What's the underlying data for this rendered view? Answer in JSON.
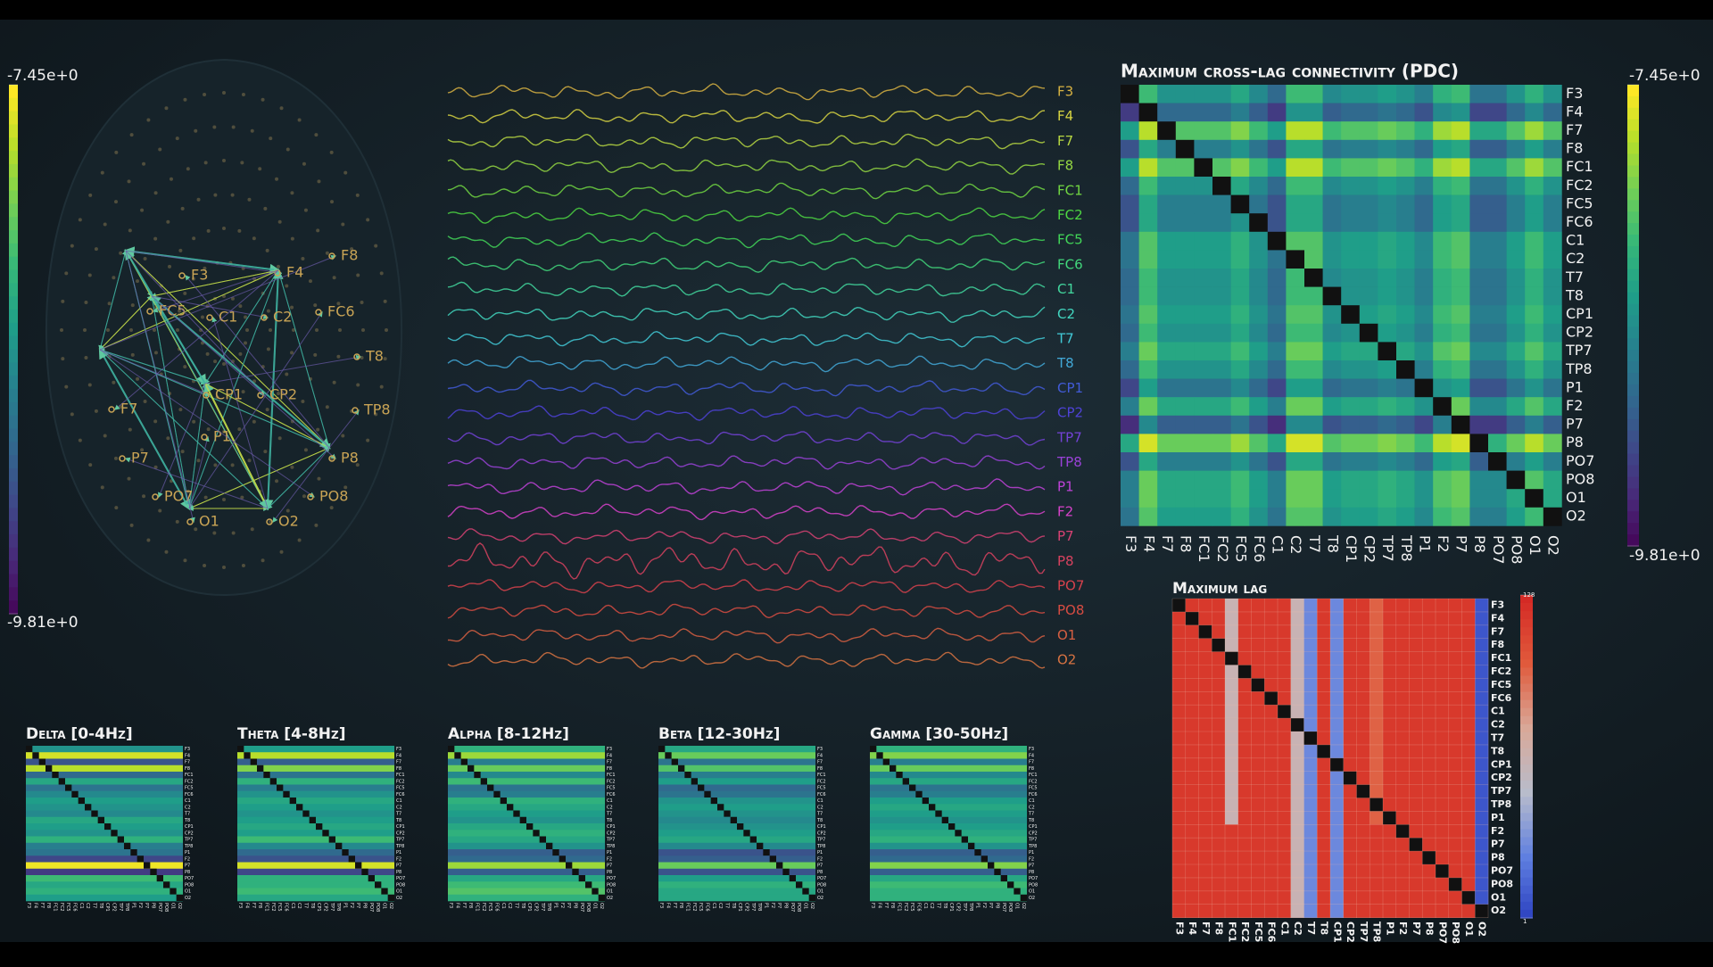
{
  "channels": [
    "F3",
    "F4",
    "F7",
    "F8",
    "FC1",
    "FC2",
    "FC5",
    "FC6",
    "C1",
    "C2",
    "T7",
    "T8",
    "CP1",
    "CP2",
    "TP7",
    "TP8",
    "P1",
    "F2",
    "P7",
    "P8",
    "PO7",
    "PO8",
    "O1",
    "O2"
  ],
  "left_colorbar": {
    "lim": [
      -9.81,
      -7.45
    ],
    "ticks": [
      {
        "value": -7.45,
        "label": "-7.45e+0"
      },
      {
        "value": -9.81,
        "label": "-9.81e+0"
      }
    ]
  },
  "topomap": {
    "labels": [
      "F8",
      "F4",
      "F3",
      "FC5",
      "FC6",
      "C1",
      "C2",
      "T8",
      "CP1",
      "CP2",
      "TP8",
      "F7",
      "P1",
      "P7",
      "P8",
      "PO7",
      "PO8",
      "O1",
      "O2"
    ]
  },
  "pdc": {
    "title": "Maximum cross-lag connectivity (PDC)",
    "lim": [
      -9.81,
      -7.45
    ],
    "colorbar_ticks": [
      {
        "value": -7.45,
        "label": "-7.45e+0"
      },
      {
        "value": -9.81,
        "label": "-9.81e+0"
      }
    ],
    "matrix": [
      [
        null,
        -8.2,
        -8.6,
        -8.6,
        -8.6,
        -8.6,
        -8.4,
        -8.7,
        -9.0,
        -8.2,
        -8.2,
        -8.7,
        -8.6,
        -8.6,
        -8.5,
        -8.6,
        -8.8,
        -8.3,
        -8.2,
        -8.9,
        -8.9,
        -8.6,
        -8.3,
        -8.6
      ],
      [
        -9.4,
        null,
        -9.0,
        -9.0,
        -9.0,
        -9.0,
        -8.8,
        -9.1,
        -9.4,
        -8.6,
        -8.6,
        -9.1,
        -9.0,
        -9.0,
        -8.9,
        -9.0,
        -9.2,
        -8.7,
        -8.6,
        -9.3,
        -9.3,
        -9.0,
        -8.7,
        -9.0
      ],
      [
        -8.5,
        -7.7,
        null,
        -8.1,
        -8.1,
        -8.1,
        -7.9,
        -8.2,
        -8.5,
        -7.7,
        -7.7,
        -8.2,
        -8.1,
        -8.1,
        -8.0,
        -8.1,
        -8.3,
        -7.8,
        -7.7,
        -8.4,
        -8.4,
        -8.1,
        -7.8,
        -8.1
      ],
      [
        -9.2,
        -8.4,
        -8.8,
        null,
        -8.8,
        -8.8,
        -8.6,
        -8.9,
        -9.2,
        -8.4,
        -8.4,
        -8.9,
        -8.8,
        -8.8,
        -8.7,
        -8.8,
        -9.0,
        -8.5,
        -8.4,
        -9.1,
        -9.1,
        -8.8,
        -8.5,
        -8.8
      ],
      [
        -8.5,
        -7.7,
        -8.1,
        -8.1,
        null,
        -8.1,
        -7.9,
        -8.2,
        -8.5,
        -7.7,
        -7.7,
        -8.2,
        -8.1,
        -8.1,
        -8.0,
        -8.1,
        -8.3,
        -7.8,
        -7.7,
        -8.4,
        -8.4,
        -8.1,
        -7.8,
        -8.1
      ],
      [
        -9.0,
        -8.2,
        -8.6,
        -8.6,
        -8.6,
        null,
        -8.4,
        -8.7,
        -9.0,
        -8.2,
        -8.2,
        -8.7,
        -8.6,
        -8.6,
        -8.5,
        -8.6,
        -8.8,
        -8.3,
        -8.2,
        -8.9,
        -8.9,
        -8.6,
        -8.3,
        -8.6
      ],
      [
        -9.2,
        -8.4,
        -8.8,
        -8.8,
        -8.8,
        -8.8,
        null,
        -8.9,
        -9.2,
        -8.4,
        -8.4,
        -8.9,
        -8.8,
        -8.8,
        -8.7,
        -8.8,
        -9.0,
        -8.5,
        -8.4,
        -9.1,
        -9.1,
        -8.8,
        -8.5,
        -8.8
      ],
      [
        -9.2,
        -8.4,
        -8.8,
        -8.8,
        -8.8,
        -8.8,
        -8.6,
        null,
        -9.2,
        -8.4,
        -8.4,
        -8.9,
        -8.8,
        -8.8,
        -8.7,
        -8.8,
        -9.0,
        -8.5,
        -8.4,
        -9.1,
        -9.1,
        -8.8,
        -8.5,
        -8.8
      ],
      [
        -8.9,
        -8.1,
        -8.5,
        -8.5,
        -8.5,
        -8.5,
        -8.3,
        -8.6,
        null,
        -8.1,
        -8.1,
        -8.6,
        -8.5,
        -8.5,
        -8.4,
        -8.5,
        -8.7,
        -8.2,
        -8.1,
        -8.8,
        -8.8,
        -8.5,
        -8.2,
        -8.5
      ],
      [
        -8.9,
        -8.1,
        -8.5,
        -8.5,
        -8.5,
        -8.5,
        -8.3,
        -8.6,
        -8.9,
        null,
        -8.1,
        -8.6,
        -8.5,
        -8.5,
        -8.4,
        -8.5,
        -8.7,
        -8.2,
        -8.1,
        -8.8,
        -8.8,
        -8.5,
        -8.2,
        -8.5
      ],
      [
        -9.0,
        -8.2,
        -8.6,
        -8.6,
        -8.6,
        -8.6,
        -8.4,
        -8.7,
        -9.0,
        -8.2,
        null,
        -8.7,
        -8.6,
        -8.6,
        -8.5,
        -8.6,
        -8.8,
        -8.3,
        -8.2,
        -8.9,
        -8.9,
        -8.6,
        -8.3,
        -8.6
      ],
      [
        -9.0,
        -8.2,
        -8.6,
        -8.6,
        -8.6,
        -8.6,
        -8.4,
        -8.7,
        -9.0,
        -8.2,
        -8.2,
        null,
        -8.6,
        -8.6,
        -8.5,
        -8.6,
        -8.8,
        -8.3,
        -8.2,
        -8.9,
        -8.9,
        -8.6,
        -8.3,
        -8.6
      ],
      [
        -8.9,
        -8.1,
        -8.5,
        -8.5,
        -8.5,
        -8.5,
        -8.3,
        -8.6,
        -8.9,
        -8.1,
        -8.1,
        -8.6,
        null,
        -8.5,
        -8.4,
        -8.5,
        -8.7,
        -8.2,
        -8.1,
        -8.8,
        -8.8,
        -8.5,
        -8.2,
        -8.5
      ],
      [
        -9.0,
        -8.2,
        -8.6,
        -8.6,
        -8.6,
        -8.6,
        -8.4,
        -8.7,
        -9.0,
        -8.2,
        -8.2,
        -8.7,
        -8.6,
        null,
        -8.5,
        -8.6,
        -8.8,
        -8.3,
        -8.2,
        -8.9,
        -8.9,
        -8.6,
        -8.3,
        -8.6
      ],
      [
        -8.8,
        -8.0,
        -8.4,
        -8.4,
        -8.4,
        -8.4,
        -8.2,
        -8.5,
        -8.8,
        -8.0,
        -8.0,
        -8.5,
        -8.4,
        -8.4,
        null,
        -8.4,
        -8.6,
        -8.1,
        -8.0,
        -8.7,
        -8.7,
        -8.4,
        -8.1,
        -8.4
      ],
      [
        -9.0,
        -8.2,
        -8.6,
        -8.6,
        -8.6,
        -8.6,
        -8.4,
        -8.7,
        -9.0,
        -8.2,
        -8.2,
        -8.7,
        -8.6,
        -8.6,
        -8.5,
        null,
        -8.8,
        -8.3,
        -8.2,
        -8.9,
        -8.9,
        -8.6,
        -8.3,
        -8.6
      ],
      [
        -9.3,
        -8.5,
        -8.9,
        -8.9,
        -8.9,
        -8.9,
        -8.7,
        -9.0,
        -9.3,
        -8.5,
        -8.5,
        -9.0,
        -8.9,
        -8.9,
        -8.8,
        -8.9,
        null,
        -8.6,
        -8.5,
        -9.2,
        -9.2,
        -8.9,
        -8.6,
        -8.9
      ],
      [
        -8.8,
        -8.0,
        -8.4,
        -8.4,
        -8.4,
        -8.4,
        -8.2,
        -8.5,
        -8.8,
        -8.0,
        -8.0,
        -8.5,
        -8.4,
        -8.4,
        -8.3,
        -8.4,
        -8.6,
        null,
        -8.0,
        -8.7,
        -8.7,
        -8.4,
        -8.1,
        -8.4
      ],
      [
        -9.5,
        -8.7,
        -9.1,
        -9.1,
        -9.1,
        -9.1,
        -8.9,
        -9.2,
        -9.5,
        -8.7,
        -8.7,
        -9.2,
        -9.1,
        -9.1,
        -9.0,
        -9.1,
        -9.3,
        -8.8,
        null,
        -9.4,
        -9.4,
        -9.1,
        -8.8,
        -9.1
      ],
      [
        -8.4,
        -7.6,
        -8.0,
        -8.0,
        -8.0,
        -8.0,
        -7.8,
        -8.1,
        -8.4,
        -7.6,
        -7.6,
        -8.1,
        -8.0,
        -8.0,
        -7.9,
        -8.0,
        -8.2,
        -7.7,
        -7.6,
        null,
        -8.3,
        -8.0,
        -7.7,
        -8.0
      ],
      [
        -9.2,
        -8.4,
        -8.8,
        -8.8,
        -8.8,
        -8.8,
        -8.6,
        -8.9,
        -9.2,
        -8.4,
        -8.4,
        -8.9,
        -8.8,
        -8.8,
        -8.7,
        -8.8,
        -9.0,
        -8.5,
        -8.4,
        -9.1,
        null,
        -8.8,
        -8.5,
        -8.8
      ],
      [
        -8.8,
        -8.0,
        -8.4,
        -8.4,
        -8.4,
        -8.4,
        -8.2,
        -8.5,
        -8.8,
        -8.0,
        -8.0,
        -8.5,
        -8.4,
        -8.4,
        -8.3,
        -8.4,
        -8.6,
        -8.1,
        -8.0,
        -8.7,
        -8.7,
        null,
        -8.1,
        -8.4
      ],
      [
        -8.8,
        -8.0,
        -8.4,
        -8.4,
        -8.4,
        -8.4,
        -8.2,
        -8.5,
        -8.8,
        -8.0,
        -8.0,
        -8.5,
        -8.4,
        -8.4,
        -8.3,
        -8.4,
        -8.6,
        -8.1,
        -8.0,
        -8.7,
        -8.7,
        -8.4,
        null,
        -8.4
      ],
      [
        -8.9,
        -8.1,
        -8.5,
        -8.5,
        -8.5,
        -8.5,
        -8.3,
        -8.6,
        -8.9,
        -8.1,
        -8.1,
        -8.6,
        -8.5,
        -8.5,
        -8.4,
        -8.5,
        -8.7,
        -8.2,
        -8.1,
        -8.8,
        -8.8,
        -8.5,
        -8.2,
        null
      ]
    ]
  },
  "max_lag": {
    "title": "Maximum lag",
    "lim": [
      1,
      128
    ],
    "colorbar_ticks": [
      128,
      1
    ],
    "matrix": [
      [
        null,
        120,
        120,
        120,
        64,
        120,
        120,
        120,
        120,
        64,
        30,
        120,
        30,
        120,
        120,
        100,
        120,
        120,
        120,
        120,
        120,
        120,
        120,
        10
      ],
      [
        120,
        null,
        120,
        120,
        64,
        120,
        120,
        120,
        120,
        64,
        30,
        120,
        30,
        120,
        120,
        100,
        120,
        120,
        120,
        120,
        120,
        120,
        120,
        10
      ],
      [
        120,
        120,
        null,
        120,
        64,
        120,
        120,
        120,
        120,
        64,
        30,
        120,
        30,
        120,
        120,
        100,
        120,
        120,
        120,
        120,
        120,
        120,
        120,
        10
      ],
      [
        120,
        120,
        120,
        null,
        64,
        120,
        120,
        120,
        120,
        64,
        30,
        120,
        30,
        120,
        120,
        100,
        120,
        120,
        120,
        120,
        120,
        120,
        120,
        10
      ],
      [
        120,
        120,
        120,
        120,
        null,
        120,
        120,
        120,
        120,
        64,
        30,
        120,
        30,
        120,
        120,
        100,
        120,
        120,
        120,
        120,
        120,
        120,
        120,
        10
      ],
      [
        120,
        120,
        120,
        120,
        64,
        null,
        120,
        120,
        120,
        64,
        30,
        120,
        30,
        120,
        120,
        100,
        120,
        120,
        120,
        120,
        120,
        120,
        120,
        10
      ],
      [
        120,
        120,
        120,
        120,
        64,
        120,
        null,
        120,
        120,
        64,
        30,
        120,
        30,
        120,
        120,
        100,
        120,
        120,
        120,
        120,
        120,
        120,
        120,
        10
      ],
      [
        120,
        120,
        120,
        120,
        64,
        120,
        120,
        null,
        120,
        64,
        30,
        120,
        30,
        120,
        120,
        100,
        120,
        120,
        120,
        120,
        120,
        120,
        120,
        10
      ],
      [
        120,
        120,
        120,
        120,
        64,
        120,
        120,
        120,
        null,
        64,
        30,
        120,
        30,
        120,
        120,
        100,
        120,
        120,
        120,
        120,
        120,
        120,
        120,
        10
      ],
      [
        120,
        120,
        120,
        120,
        64,
        120,
        120,
        120,
        120,
        null,
        30,
        120,
        30,
        120,
        120,
        100,
        120,
        120,
        120,
        120,
        120,
        120,
        120,
        10
      ],
      [
        120,
        120,
        120,
        120,
        64,
        120,
        120,
        120,
        120,
        64,
        null,
        120,
        30,
        120,
        120,
        100,
        120,
        120,
        120,
        120,
        120,
        120,
        120,
        10
      ],
      [
        120,
        120,
        120,
        120,
        64,
        120,
        120,
        120,
        120,
        64,
        30,
        null,
        30,
        120,
        120,
        100,
        120,
        120,
        120,
        120,
        120,
        120,
        120,
        10
      ],
      [
        120,
        120,
        120,
        120,
        64,
        120,
        120,
        120,
        120,
        64,
        30,
        120,
        null,
        120,
        120,
        100,
        120,
        120,
        120,
        120,
        120,
        120,
        120,
        10
      ],
      [
        120,
        120,
        120,
        120,
        64,
        120,
        120,
        120,
        120,
        64,
        30,
        120,
        30,
        null,
        120,
        100,
        120,
        120,
        120,
        120,
        120,
        120,
        120,
        10
      ],
      [
        120,
        120,
        120,
        120,
        64,
        120,
        120,
        120,
        120,
        64,
        30,
        120,
        30,
        120,
        null,
        100,
        120,
        120,
        120,
        120,
        120,
        120,
        120,
        10
      ],
      [
        120,
        120,
        120,
        120,
        64,
        120,
        120,
        120,
        120,
        64,
        30,
        120,
        30,
        120,
        120,
        null,
        120,
        120,
        120,
        120,
        120,
        120,
        120,
        10
      ],
      [
        120,
        120,
        120,
        120,
        64,
        120,
        120,
        120,
        120,
        64,
        30,
        120,
        30,
        120,
        120,
        100,
        null,
        120,
        120,
        120,
        120,
        120,
        120,
        10
      ],
      [
        120,
        120,
        120,
        120,
        120,
        120,
        120,
        120,
        120,
        64,
        30,
        120,
        30,
        120,
        120,
        120,
        120,
        null,
        120,
        120,
        120,
        120,
        120,
        10
      ],
      [
        120,
        120,
        120,
        120,
        120,
        120,
        120,
        120,
        120,
        64,
        30,
        120,
        30,
        120,
        120,
        120,
        120,
        120,
        null,
        120,
        120,
        120,
        120,
        10
      ],
      [
        120,
        120,
        120,
        120,
        120,
        120,
        120,
        120,
        120,
        64,
        30,
        120,
        30,
        120,
        120,
        120,
        120,
        120,
        120,
        null,
        120,
        120,
        120,
        10
      ],
      [
        120,
        120,
        120,
        120,
        120,
        120,
        120,
        120,
        120,
        64,
        30,
        120,
        30,
        120,
        120,
        120,
        120,
        120,
        120,
        120,
        null,
        120,
        120,
        10
      ],
      [
        120,
        120,
        120,
        120,
        120,
        120,
        120,
        120,
        120,
        64,
        30,
        120,
        30,
        120,
        120,
        120,
        120,
        120,
        120,
        120,
        120,
        null,
        120,
        10
      ],
      [
        120,
        120,
        120,
        120,
        120,
        120,
        120,
        120,
        120,
        64,
        30,
        120,
        30,
        120,
        120,
        120,
        120,
        120,
        120,
        120,
        120,
        120,
        null,
        10
      ],
      [
        120,
        120,
        120,
        120,
        120,
        120,
        120,
        120,
        120,
        64,
        30,
        120,
        30,
        120,
        120,
        120,
        120,
        120,
        120,
        120,
        120,
        120,
        120,
        null
      ]
    ]
  },
  "bands": [
    {
      "title": "Delta [0-4Hz]",
      "row_values": [
        -8.6,
        -7.6,
        -9.2,
        -7.7,
        -9.0,
        -8.4,
        -8.9,
        -8.7,
        -8.5,
        -8.6,
        -8.7,
        -8.4,
        -8.5,
        -8.6,
        -8.3,
        -8.8,
        -8.9,
        -9.3,
        -7.5,
        -9.4,
        -8.2,
        -8.4,
        -8.3,
        -8.5
      ]
    },
    {
      "title": "Theta [4-8Hz]",
      "row_values": [
        -8.5,
        -7.7,
        -9.1,
        -7.9,
        -8.9,
        -8.3,
        -8.8,
        -8.6,
        -8.4,
        -8.5,
        -8.6,
        -8.5,
        -8.4,
        -8.5,
        -8.2,
        -8.7,
        -9.0,
        -9.2,
        -7.6,
        -9.3,
        -8.3,
        -8.3,
        -8.2,
        -8.4
      ]
    },
    {
      "title": "Alpha [8-12Hz]",
      "row_values": [
        -8.3,
        -7.8,
        -8.8,
        -8.0,
        -8.7,
        -8.2,
        -8.9,
        -8.8,
        -8.3,
        -8.4,
        -8.5,
        -8.6,
        -8.4,
        -8.3,
        -8.4,
        -8.6,
        -9.1,
        -9.0,
        -7.8,
        -9.1,
        -8.4,
        -8.2,
        -8.1,
        -8.3
      ]
    },
    {
      "title": "Beta [12-30Hz]",
      "row_values": [
        -8.4,
        -8.0,
        -8.9,
        -8.1,
        -8.8,
        -8.5,
        -9.0,
        -8.9,
        -8.6,
        -8.5,
        -8.6,
        -8.7,
        -8.6,
        -8.5,
        -8.4,
        -8.7,
        -9.2,
        -9.1,
        -8.0,
        -9.2,
        -8.5,
        -8.3,
        -8.4,
        -8.4
      ]
    },
    {
      "title": "Gamma [30-50Hz]",
      "row_values": [
        -8.3,
        -7.9,
        -8.8,
        -8.0,
        -8.7,
        -8.4,
        -8.9,
        -8.8,
        -8.5,
        -8.4,
        -8.5,
        -8.6,
        -8.5,
        -8.4,
        -8.3,
        -8.6,
        -9.1,
        -9.0,
        -7.9,
        -9.1,
        -8.4,
        -8.2,
        -8.3,
        -8.3
      ]
    }
  ]
}
